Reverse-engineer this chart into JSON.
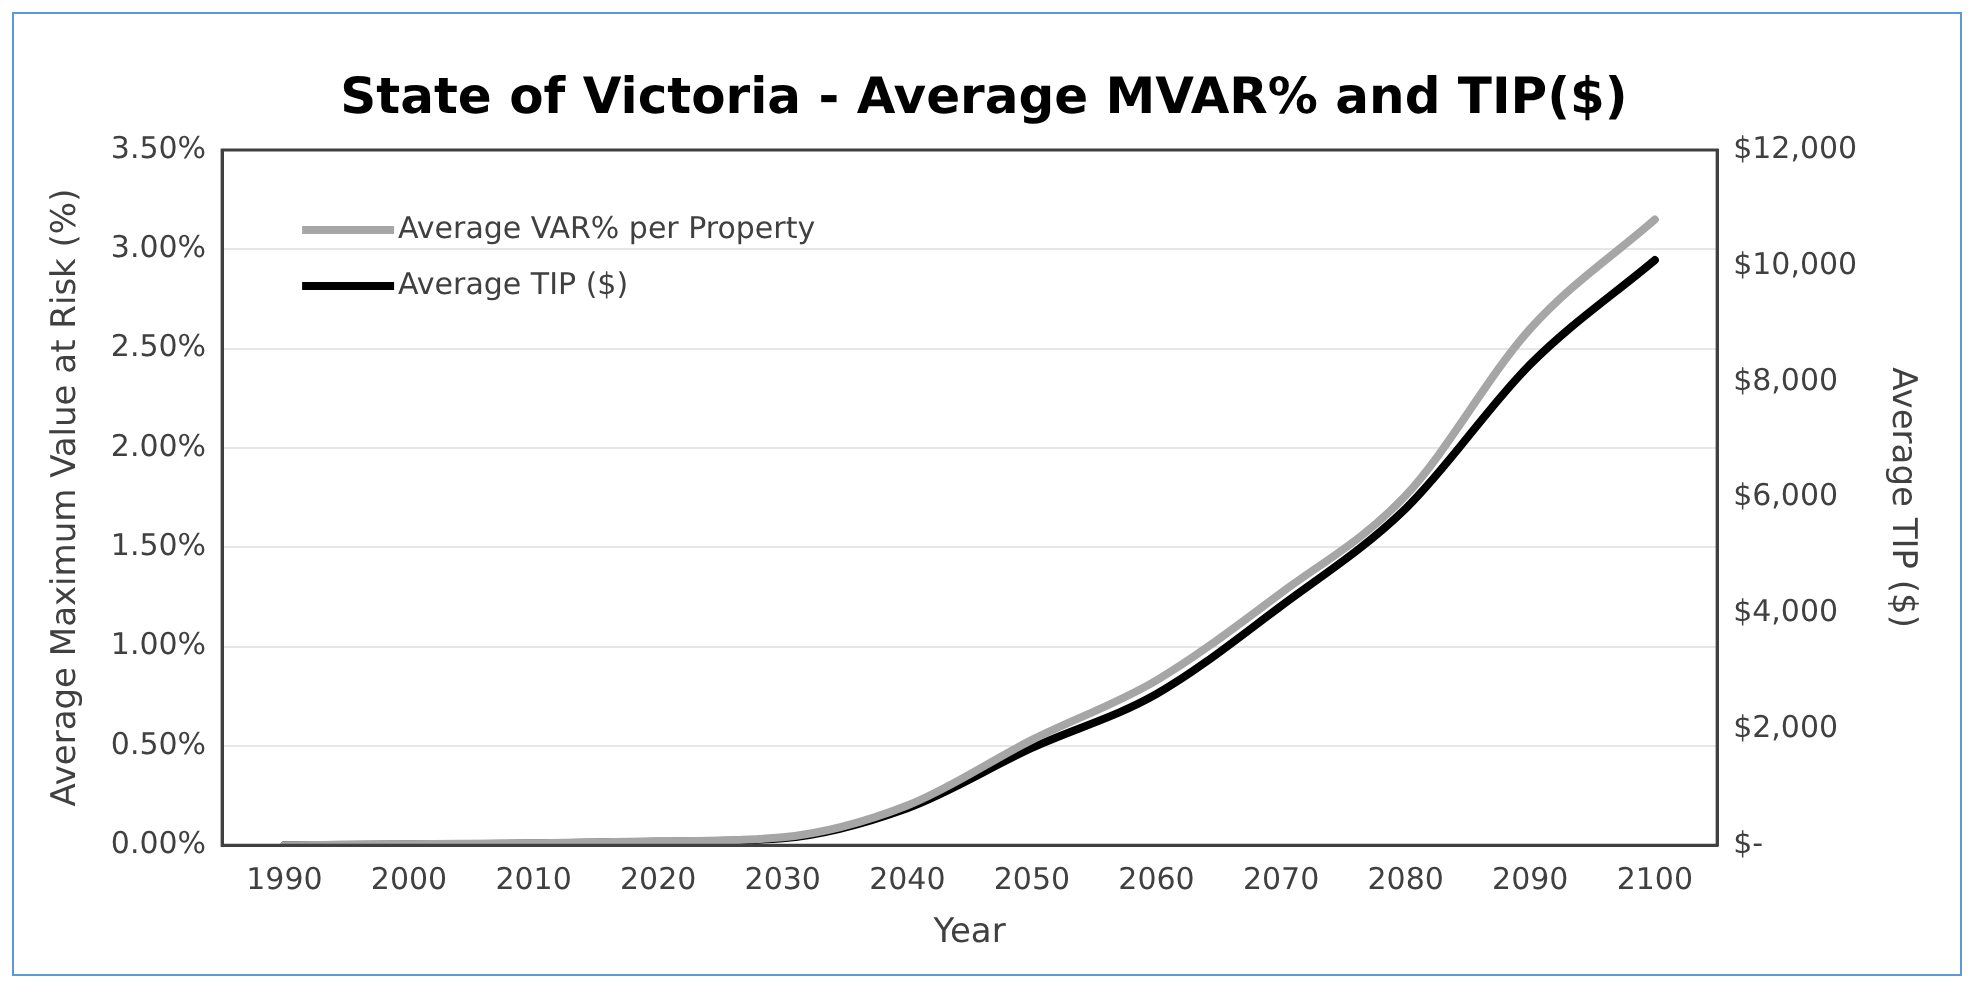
{
  "chart_data": {
    "type": "line",
    "title": "State of Victoria - Average MVAR% and TIP($)",
    "xlabel": "Year",
    "ylabel": "Average Maximum Value at Risk (%)",
    "y2label": "Average TIP ($)",
    "categories": [
      "1990",
      "2000",
      "2010",
      "2020",
      "2030",
      "2040",
      "2050",
      "2060",
      "2070",
      "2080",
      "2090",
      "2100"
    ],
    "series": [
      {
        "name": "Average VAR% per Property",
        "color": "#a6a6a6",
        "values": [
          0,
          0.005,
          0.01,
          0.02,
          0.04,
          0.2,
          0.53,
          0.83,
          1.27,
          1.76,
          2.6,
          3.15
        ]
      },
      {
        "name": "Average TIP ($)",
        "color": "#000000",
        "axis": "y2",
        "values": [
          0,
          10,
          30,
          60,
          120,
          640,
          1680,
          2610,
          4130,
          5810,
          8300,
          10100
        ]
      }
    ],
    "ylim": [
      0,
      3.5
    ],
    "yticks": [
      {
        "value": 0,
        "label": "0.00%"
      },
      {
        "value": 0.5,
        "label": "0.50%"
      },
      {
        "value": 1,
        "label": "1.00%"
      },
      {
        "value": 1.5,
        "label": "1.50%"
      },
      {
        "value": 2,
        "label": "2.00%"
      },
      {
        "value": 2.5,
        "label": "2.50%"
      },
      {
        "value": 3,
        "label": "3.00%"
      },
      {
        "value": 3.5,
        "label": "3.50%"
      }
    ],
    "y2lim": [
      0,
      12000
    ],
    "y2ticks": [
      {
        "value": 0,
        "label": "$-"
      },
      {
        "value": 2000,
        "label": "$2,000"
      },
      {
        "value": 4000,
        "label": "$4,000"
      },
      {
        "value": 6000,
        "label": "$6,000"
      },
      {
        "value": 8000,
        "label": "$8,000"
      },
      {
        "value": 10000,
        "label": "$10,000"
      },
      {
        "value": 12000,
        "label": "$12,000"
      }
    ],
    "grid": "y",
    "legend": "top left",
    "marker": "none",
    "line_style": "solid"
  }
}
